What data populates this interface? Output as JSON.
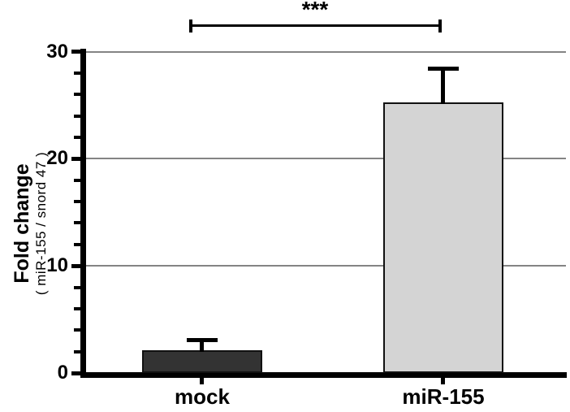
{
  "chart_data": {
    "type": "bar",
    "title": "",
    "categories": [
      "mock",
      "miR-155"
    ],
    "values": [
      2.1,
      25.3
    ],
    "errors": [
      1.2,
      3.3
    ],
    "ylabel": "Fold change",
    "ylabel_sub": "( miR-155 / snord 47 )",
    "xlabel": "",
    "ylim": [
      0,
      30
    ],
    "yticks": [
      0,
      10,
      20,
      30
    ],
    "minor_tick_step": 2,
    "grid": true,
    "gridline_color": "#848484",
    "bar_fill_colors": [
      "#333333",
      "#d4d4d4"
    ],
    "bar_border_color": "#111111",
    "significance": {
      "label": "***",
      "between": [
        "mock",
        "miR-155"
      ]
    }
  }
}
